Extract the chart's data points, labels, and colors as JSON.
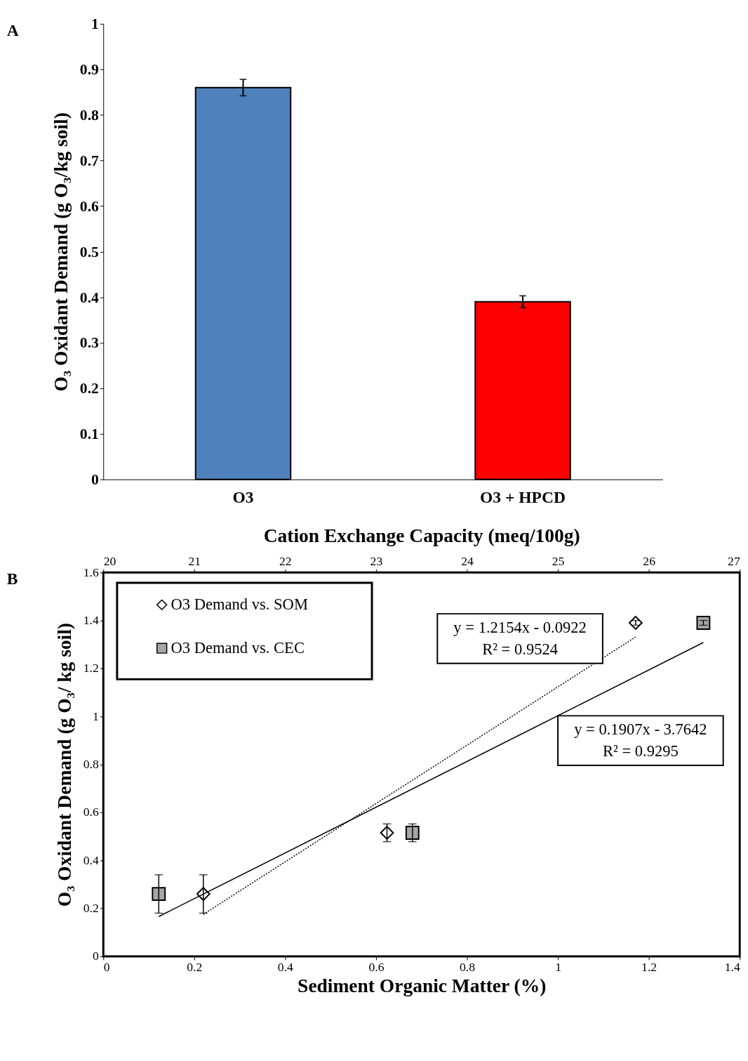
{
  "chart_data": [
    {
      "type": "bar",
      "title": "A",
      "ylabel": "O₃ Oxidant Demand (g O₃/kg soil)",
      "categories": [
        "O3",
        "O3 + HPCD"
      ],
      "values": [
        0.86,
        0.39
      ],
      "colors": [
        "#4f81bd",
        "#ff0000"
      ],
      "errors": [
        0.018,
        0.013
      ],
      "ylim": [
        0,
        1
      ],
      "yticks": [
        0,
        0.1,
        0.2,
        0.3,
        0.4,
        0.5,
        0.6,
        0.7,
        0.8,
        0.9,
        1
      ],
      "grid": false
    },
    {
      "type": "scatter",
      "title": "B",
      "xlabel": "Sediment Organic Matter (%)",
      "x2label": "Cation Exchange Capacity (meq/100g)",
      "ylabel": "O₃ Oxidant Demand (g O₃/ kg soil)",
      "series": [
        {
          "name": "O3 Demand vs. SOM",
          "type": "scatter",
          "marker": "diamond",
          "color": "#ffffff",
          "x": [
            0.22,
            0.624,
            1.171
          ],
          "values": [
            0.26,
            0.515,
            1.39
          ],
          "errors": [
            0.08,
            0.037,
            0.01
          ]
        },
        {
          "name": "O3 Demand vs. CEC",
          "type": "scatter",
          "marker": "square",
          "color": "#a6a6a6",
          "axis": "x2",
          "x": [
            20.61,
            23.4,
            26.6
          ],
          "values": [
            0.26,
            0.515,
            1.39
          ],
          "errors": [
            0.08,
            0.037,
            0.01
          ]
        },
        {
          "type": "line",
          "line_style": "dotted",
          "color": "#000000",
          "x": [
            0.22,
            1.171
          ],
          "values": [
            0.175,
            1.331
          ]
        },
        {
          "type": "line",
          "line_style": "solid",
          "color": "#000000",
          "axis": "x2",
          "x": [
            20.61,
            26.6
          ],
          "values": [
            0.166,
            1.308
          ]
        }
      ],
      "xlim": [
        0,
        1.4
      ],
      "xticks": [
        0,
        0.2,
        0.4,
        0.6,
        0.8,
        1,
        1.2,
        1.4
      ],
      "x2lim": [
        20,
        27
      ],
      "x2ticks": [
        20,
        21,
        22,
        23,
        24,
        25,
        26,
        27
      ],
      "ylim": [
        0,
        1.6
      ],
      "yticks": [
        0,
        0.2,
        0.4,
        0.6,
        0.8,
        1,
        1.2,
        1.4,
        1.6
      ],
      "annotations": [
        "y = 1.2154x - 0.0922\nR² = 0.9524",
        "y = 0.1907x - 3.7642\nR² = 0.9295"
      ],
      "grid": false,
      "legend": "top left"
    }
  ]
}
